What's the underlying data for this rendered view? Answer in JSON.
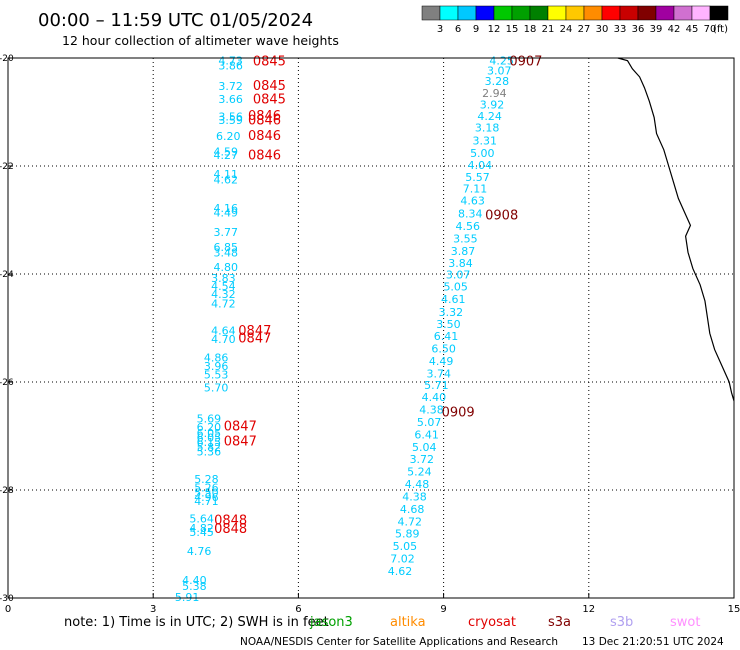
{
  "header": {
    "title": "00:00 – 11:59 UTC 01/05/2024",
    "subtitle": "12 hour collection of altimeter wave heights"
  },
  "colorbar": {
    "unit": "(ft)",
    "bins": [
      {
        "label": "3",
        "color": "#808080"
      },
      {
        "label": "6",
        "color": "#00ffff"
      },
      {
        "label": "9",
        "color": "#00c8ff"
      },
      {
        "label": "12",
        "color": "#0000ff"
      },
      {
        "label": "15",
        "color": "#00c800"
      },
      {
        "label": "18",
        "color": "#00a000"
      },
      {
        "label": "21",
        "color": "#008000"
      },
      {
        "label": "24",
        "color": "#ffff00"
      },
      {
        "label": "27",
        "color": "#ffc800"
      },
      {
        "label": "30",
        "color": "#ff8c00"
      },
      {
        "label": "33",
        "color": "#ff0000"
      },
      {
        "label": "36",
        "color": "#c80000"
      },
      {
        "label": "39",
        "color": "#800000"
      },
      {
        "label": "42",
        "color": "#a000a0"
      },
      {
        "label": "45",
        "color": "#d070d0"
      },
      {
        "label": "70",
        "color": "#ffb4ff"
      },
      {
        "label": "",
        "color": "#000000"
      }
    ]
  },
  "chart_data": {
    "type": "scatter",
    "xlim": [
      0,
      15
    ],
    "ylim": [
      -30,
      -20
    ],
    "x_ticks": [
      {
        "v": 0,
        "label": "0"
      },
      {
        "v": 3,
        "label": "3"
      },
      {
        "v": 6,
        "label": "6"
      },
      {
        "v": 9,
        "label": "9"
      },
      {
        "v": 12,
        "label": "12"
      },
      {
        "v": 15,
        "label": "15"
      }
    ],
    "y_ticks": [
      {
        "v": -20,
        "label": "-20"
      },
      {
        "v": -22,
        "label": "-22"
      },
      {
        "v": -24,
        "label": "-24"
      },
      {
        "v": -26,
        "label": "-26"
      },
      {
        "v": -28,
        "label": "-28"
      },
      {
        "v": -30,
        "label": "-30"
      }
    ],
    "grid": true,
    "wave_heights": [
      {
        "x": 4.6,
        "y": -20.05,
        "label": "4.73",
        "color": "#00ccff"
      },
      {
        "x": 4.6,
        "y": -20.14,
        "label": "3.86",
        "color": "#00ccff"
      },
      {
        "x": 4.6,
        "y": -20.52,
        "label": "3.72",
        "color": "#00ccff"
      },
      {
        "x": 4.6,
        "y": -20.76,
        "label": "3.66",
        "color": "#00ccff"
      },
      {
        "x": 4.6,
        "y": -21.08,
        "label": "3.56",
        "color": "#00ccff"
      },
      {
        "x": 4.6,
        "y": -21.15,
        "label": "3.59",
        "color": "#00ccff"
      },
      {
        "x": 4.55,
        "y": -21.44,
        "label": "6.20",
        "color": "#00ccff"
      },
      {
        "x": 4.5,
        "y": -21.73,
        "label": "4.59",
        "color": "#00ccff"
      },
      {
        "x": 4.5,
        "y": -21.8,
        "label": "4.27",
        "color": "#00ccff"
      },
      {
        "x": 4.5,
        "y": -22.15,
        "label": "4.11",
        "color": "#00ccff"
      },
      {
        "x": 4.5,
        "y": -22.25,
        "label": "4.62",
        "color": "#00ccff"
      },
      {
        "x": 4.5,
        "y": -22.78,
        "label": "4.16",
        "color": "#00ccff"
      },
      {
        "x": 4.5,
        "y": -22.86,
        "label": "4.49",
        "color": "#00ccff"
      },
      {
        "x": 4.5,
        "y": -23.22,
        "label": "3.77",
        "color": "#00ccff"
      },
      {
        "x": 4.5,
        "y": -23.5,
        "label": "6.85",
        "color": "#00ccff"
      },
      {
        "x": 4.5,
        "y": -23.6,
        "label": "3.48",
        "color": "#00ccff"
      },
      {
        "x": 4.5,
        "y": -23.87,
        "label": "4.80",
        "color": "#00ccff"
      },
      {
        "x": 4.45,
        "y": -24.07,
        "label": "3.83",
        "color": "#00ccff"
      },
      {
        "x": 4.45,
        "y": -24.22,
        "label": "4.54",
        "color": "#00ccff"
      },
      {
        "x": 4.45,
        "y": -24.37,
        "label": "4.32",
        "color": "#00ccff"
      },
      {
        "x": 4.45,
        "y": -24.55,
        "label": "4.72",
        "color": "#00ccff"
      },
      {
        "x": 4.45,
        "y": -25.05,
        "label": "4.64",
        "color": "#00ccff"
      },
      {
        "x": 4.45,
        "y": -25.2,
        "label": "4.70",
        "color": "#00ccff"
      },
      {
        "x": 4.3,
        "y": -25.55,
        "label": "4.86",
        "color": "#00ccff"
      },
      {
        "x": 4.3,
        "y": -25.7,
        "label": "3.96",
        "color": "#00ccff"
      },
      {
        "x": 4.3,
        "y": -25.86,
        "label": "5.53",
        "color": "#00ccff"
      },
      {
        "x": 4.3,
        "y": -26.1,
        "label": "5.70",
        "color": "#00ccff"
      },
      {
        "x": 4.15,
        "y": -26.68,
        "label": "5.69",
        "color": "#00ccff"
      },
      {
        "x": 4.15,
        "y": -26.83,
        "label": "6.20",
        "color": "#00ccff"
      },
      {
        "x": 4.15,
        "y": -26.94,
        "label": "6.05",
        "color": "#00ccff"
      },
      {
        "x": 4.15,
        "y": -27.03,
        "label": "6.05",
        "color": "#00ccff"
      },
      {
        "x": 4.15,
        "y": -27.11,
        "label": "6.15",
        "color": "#00ccff"
      },
      {
        "x": 4.15,
        "y": -27.2,
        "label": "5.82",
        "color": "#00ccff"
      },
      {
        "x": 4.15,
        "y": -27.29,
        "label": "5.36",
        "color": "#00ccff"
      },
      {
        "x": 4.1,
        "y": -27.8,
        "label": "5.28",
        "color": "#00ccff"
      },
      {
        "x": 4.1,
        "y": -27.95,
        "label": "5.26",
        "color": "#00ccff"
      },
      {
        "x": 4.1,
        "y": -28.05,
        "label": "5.50",
        "color": "#00ccff"
      },
      {
        "x": 4.1,
        "y": -28.13,
        "label": "4.96",
        "color": "#00ccff"
      },
      {
        "x": 4.1,
        "y": -28.2,
        "label": "4.71",
        "color": "#00ccff"
      },
      {
        "x": 4.0,
        "y": -28.53,
        "label": "5.64",
        "color": "#00ccff"
      },
      {
        "x": 4.0,
        "y": -28.7,
        "label": "4.82",
        "color": "#00ccff"
      },
      {
        "x": 4.0,
        "y": -28.78,
        "label": "5.45",
        "color": "#00ccff"
      },
      {
        "x": 3.95,
        "y": -29.13,
        "label": "4.76",
        "color": "#00ccff"
      },
      {
        "x": 3.85,
        "y": -29.67,
        "label": "4.40",
        "color": "#00ccff"
      },
      {
        "x": 3.85,
        "y": -29.78,
        "label": "5.38",
        "color": "#00ccff"
      },
      {
        "x": 3.7,
        "y": -29.98,
        "label": "5.91",
        "color": "#00ccff"
      },
      {
        "x": 10.2,
        "y": -20.05,
        "label": "4.25",
        "color": "#00ccff"
      },
      {
        "x": 10.15,
        "y": -20.23,
        "label": "3.07",
        "color": "#00ccff"
      },
      {
        "x": 10.1,
        "y": -20.43,
        "label": "3.28",
        "color": "#00ccff"
      },
      {
        "x": 10.05,
        "y": -20.65,
        "label": "2.94",
        "color": "#808080"
      },
      {
        "x": 10.0,
        "y": -20.86,
        "label": "3.92",
        "color": "#00ccff"
      },
      {
        "x": 9.95,
        "y": -21.07,
        "label": "4.24",
        "color": "#00ccff"
      },
      {
        "x": 9.9,
        "y": -21.29,
        "label": "3.18",
        "color": "#00ccff"
      },
      {
        "x": 9.85,
        "y": -21.53,
        "label": "3.31",
        "color": "#00ccff"
      },
      {
        "x": 9.8,
        "y": -21.76,
        "label": "5.00",
        "color": "#00ccff"
      },
      {
        "x": 9.75,
        "y": -21.98,
        "label": "4.04",
        "color": "#00ccff"
      },
      {
        "x": 9.7,
        "y": -22.2,
        "label": "5.57",
        "color": "#00ccff"
      },
      {
        "x": 9.65,
        "y": -22.42,
        "label": "7.11",
        "color": "#00ccff"
      },
      {
        "x": 9.6,
        "y": -22.64,
        "label": "4.63",
        "color": "#00ccff"
      },
      {
        "x": 9.55,
        "y": -22.88,
        "label": "8.34",
        "color": "#00ccff"
      },
      {
        "x": 9.5,
        "y": -23.11,
        "label": "4.56",
        "color": "#00ccff"
      },
      {
        "x": 9.45,
        "y": -23.34,
        "label": "3.55",
        "color": "#00ccff"
      },
      {
        "x": 9.4,
        "y": -23.57,
        "label": "3.87",
        "color": "#00ccff"
      },
      {
        "x": 9.35,
        "y": -23.8,
        "label": "3.84",
        "color": "#00ccff"
      },
      {
        "x": 9.3,
        "y": -24.01,
        "label": "3.07",
        "color": "#00ccff"
      },
      {
        "x": 9.25,
        "y": -24.23,
        "label": "5.05",
        "color": "#00ccff"
      },
      {
        "x": 9.2,
        "y": -24.46,
        "label": "4.61",
        "color": "#00ccff"
      },
      {
        "x": 9.15,
        "y": -24.7,
        "label": "3.32",
        "color": "#00ccff"
      },
      {
        "x": 9.1,
        "y": -24.93,
        "label": "3.50",
        "color": "#00ccff"
      },
      {
        "x": 9.05,
        "y": -25.15,
        "label": "6.41",
        "color": "#00ccff"
      },
      {
        "x": 9.0,
        "y": -25.38,
        "label": "6.50",
        "color": "#00ccff"
      },
      {
        "x": 8.95,
        "y": -25.61,
        "label": "4.49",
        "color": "#00ccff"
      },
      {
        "x": 8.9,
        "y": -25.84,
        "label": "3.74",
        "color": "#00ccff"
      },
      {
        "x": 8.85,
        "y": -26.06,
        "label": "5.71",
        "color": "#00ccff"
      },
      {
        "x": 8.8,
        "y": -26.28,
        "label": "4.40",
        "color": "#00ccff"
      },
      {
        "x": 8.75,
        "y": -26.51,
        "label": "4.38",
        "color": "#00ccff"
      },
      {
        "x": 8.7,
        "y": -26.74,
        "label": "5.07",
        "color": "#00ccff"
      },
      {
        "x": 8.65,
        "y": -26.97,
        "label": "6.41",
        "color": "#00ccff"
      },
      {
        "x": 8.6,
        "y": -27.2,
        "label": "5.04",
        "color": "#00ccff"
      },
      {
        "x": 8.55,
        "y": -27.43,
        "label": "3.72",
        "color": "#00ccff"
      },
      {
        "x": 8.5,
        "y": -27.66,
        "label": "5.24",
        "color": "#00ccff"
      },
      {
        "x": 8.45,
        "y": -27.89,
        "label": "4.48",
        "color": "#00ccff"
      },
      {
        "x": 8.4,
        "y": -28.12,
        "label": "4.38",
        "color": "#00ccff"
      },
      {
        "x": 8.35,
        "y": -28.35,
        "label": "4.68",
        "color": "#00ccff"
      },
      {
        "x": 8.3,
        "y": -28.58,
        "label": "4.72",
        "color": "#00ccff"
      },
      {
        "x": 8.25,
        "y": -28.81,
        "label": "5.89",
        "color": "#00ccff"
      },
      {
        "x": 8.2,
        "y": -29.04,
        "label": "5.05",
        "color": "#00ccff"
      },
      {
        "x": 8.15,
        "y": -29.27,
        "label": "7.02",
        "color": "#00ccff"
      },
      {
        "x": 8.1,
        "y": -29.5,
        "label": "4.62",
        "color": "#00ccff"
      }
    ],
    "pass_times": [
      {
        "x": 5.4,
        "y": -20.05,
        "label": "0845",
        "color": "#e00000"
      },
      {
        "x": 5.4,
        "y": -20.5,
        "label": "0845",
        "color": "#e00000"
      },
      {
        "x": 5.4,
        "y": -20.75,
        "label": "0845",
        "color": "#e00000"
      },
      {
        "x": 5.3,
        "y": -21.06,
        "label": "0846",
        "color": "#e00000"
      },
      {
        "x": 5.3,
        "y": -21.14,
        "label": "0846",
        "color": "#e00000"
      },
      {
        "x": 5.3,
        "y": -21.43,
        "label": "0846",
        "color": "#e00000"
      },
      {
        "x": 5.3,
        "y": -21.79,
        "label": "0846",
        "color": "#e00000"
      },
      {
        "x": 5.1,
        "y": -25.04,
        "label": "0847",
        "color": "#e00000"
      },
      {
        "x": 5.1,
        "y": -25.18,
        "label": "0847",
        "color": "#e00000"
      },
      {
        "x": 4.8,
        "y": -26.81,
        "label": "0847",
        "color": "#e00000"
      },
      {
        "x": 4.8,
        "y": -27.08,
        "label": "0847",
        "color": "#e00000"
      },
      {
        "x": 4.6,
        "y": -28.55,
        "label": "0848",
        "color": "#e00000"
      },
      {
        "x": 4.6,
        "y": -28.7,
        "label": "0848",
        "color": "#e00000"
      },
      {
        "x": 10.7,
        "y": -20.05,
        "label": "0907",
        "color": "#800000"
      },
      {
        "x": 10.2,
        "y": -22.9,
        "label": "0908",
        "color": "#800000"
      },
      {
        "x": 9.3,
        "y": -26.55,
        "label": "0909",
        "color": "#800000"
      }
    ]
  },
  "coastline": [
    [
      12.6,
      -20.0
    ],
    [
      12.8,
      -20.05
    ],
    [
      12.9,
      -20.2
    ],
    [
      13.05,
      -20.35
    ],
    [
      13.15,
      -20.55
    ],
    [
      13.25,
      -20.8
    ],
    [
      13.35,
      -21.1
    ],
    [
      13.4,
      -21.4
    ],
    [
      13.55,
      -21.7
    ],
    [
      13.65,
      -22.0
    ],
    [
      13.75,
      -22.3
    ],
    [
      13.85,
      -22.6
    ],
    [
      14.0,
      -22.9
    ],
    [
      14.1,
      -23.1
    ],
    [
      14.0,
      -23.3
    ],
    [
      14.05,
      -23.6
    ],
    [
      14.15,
      -23.9
    ],
    [
      14.3,
      -24.2
    ],
    [
      14.4,
      -24.5
    ],
    [
      14.45,
      -24.8
    ],
    [
      14.5,
      -25.1
    ],
    [
      14.6,
      -25.4
    ],
    [
      14.75,
      -25.7
    ],
    [
      14.9,
      -26.0
    ],
    [
      14.95,
      -26.2
    ],
    [
      15.0,
      -26.35
    ]
  ],
  "legend": {
    "note": "note: 1) Time is in UTC; 2) SWH is in feet",
    "missions": [
      {
        "name": "jason3",
        "color": "#00a000"
      },
      {
        "name": "altika",
        "color": "#ff8c00"
      },
      {
        "name": "cryosat",
        "color": "#e00000"
      },
      {
        "name": "s3a",
        "color": "#800000"
      },
      {
        "name": "s3b",
        "color": "#b0a0f0"
      },
      {
        "name": "swot",
        "color": "#ff90ff"
      }
    ]
  },
  "footer": {
    "credit": "NOAA/NESDIS Center for Satellite Applications and Research",
    "timestamp": "13 Dec 21:20:51 UTC 2024"
  }
}
